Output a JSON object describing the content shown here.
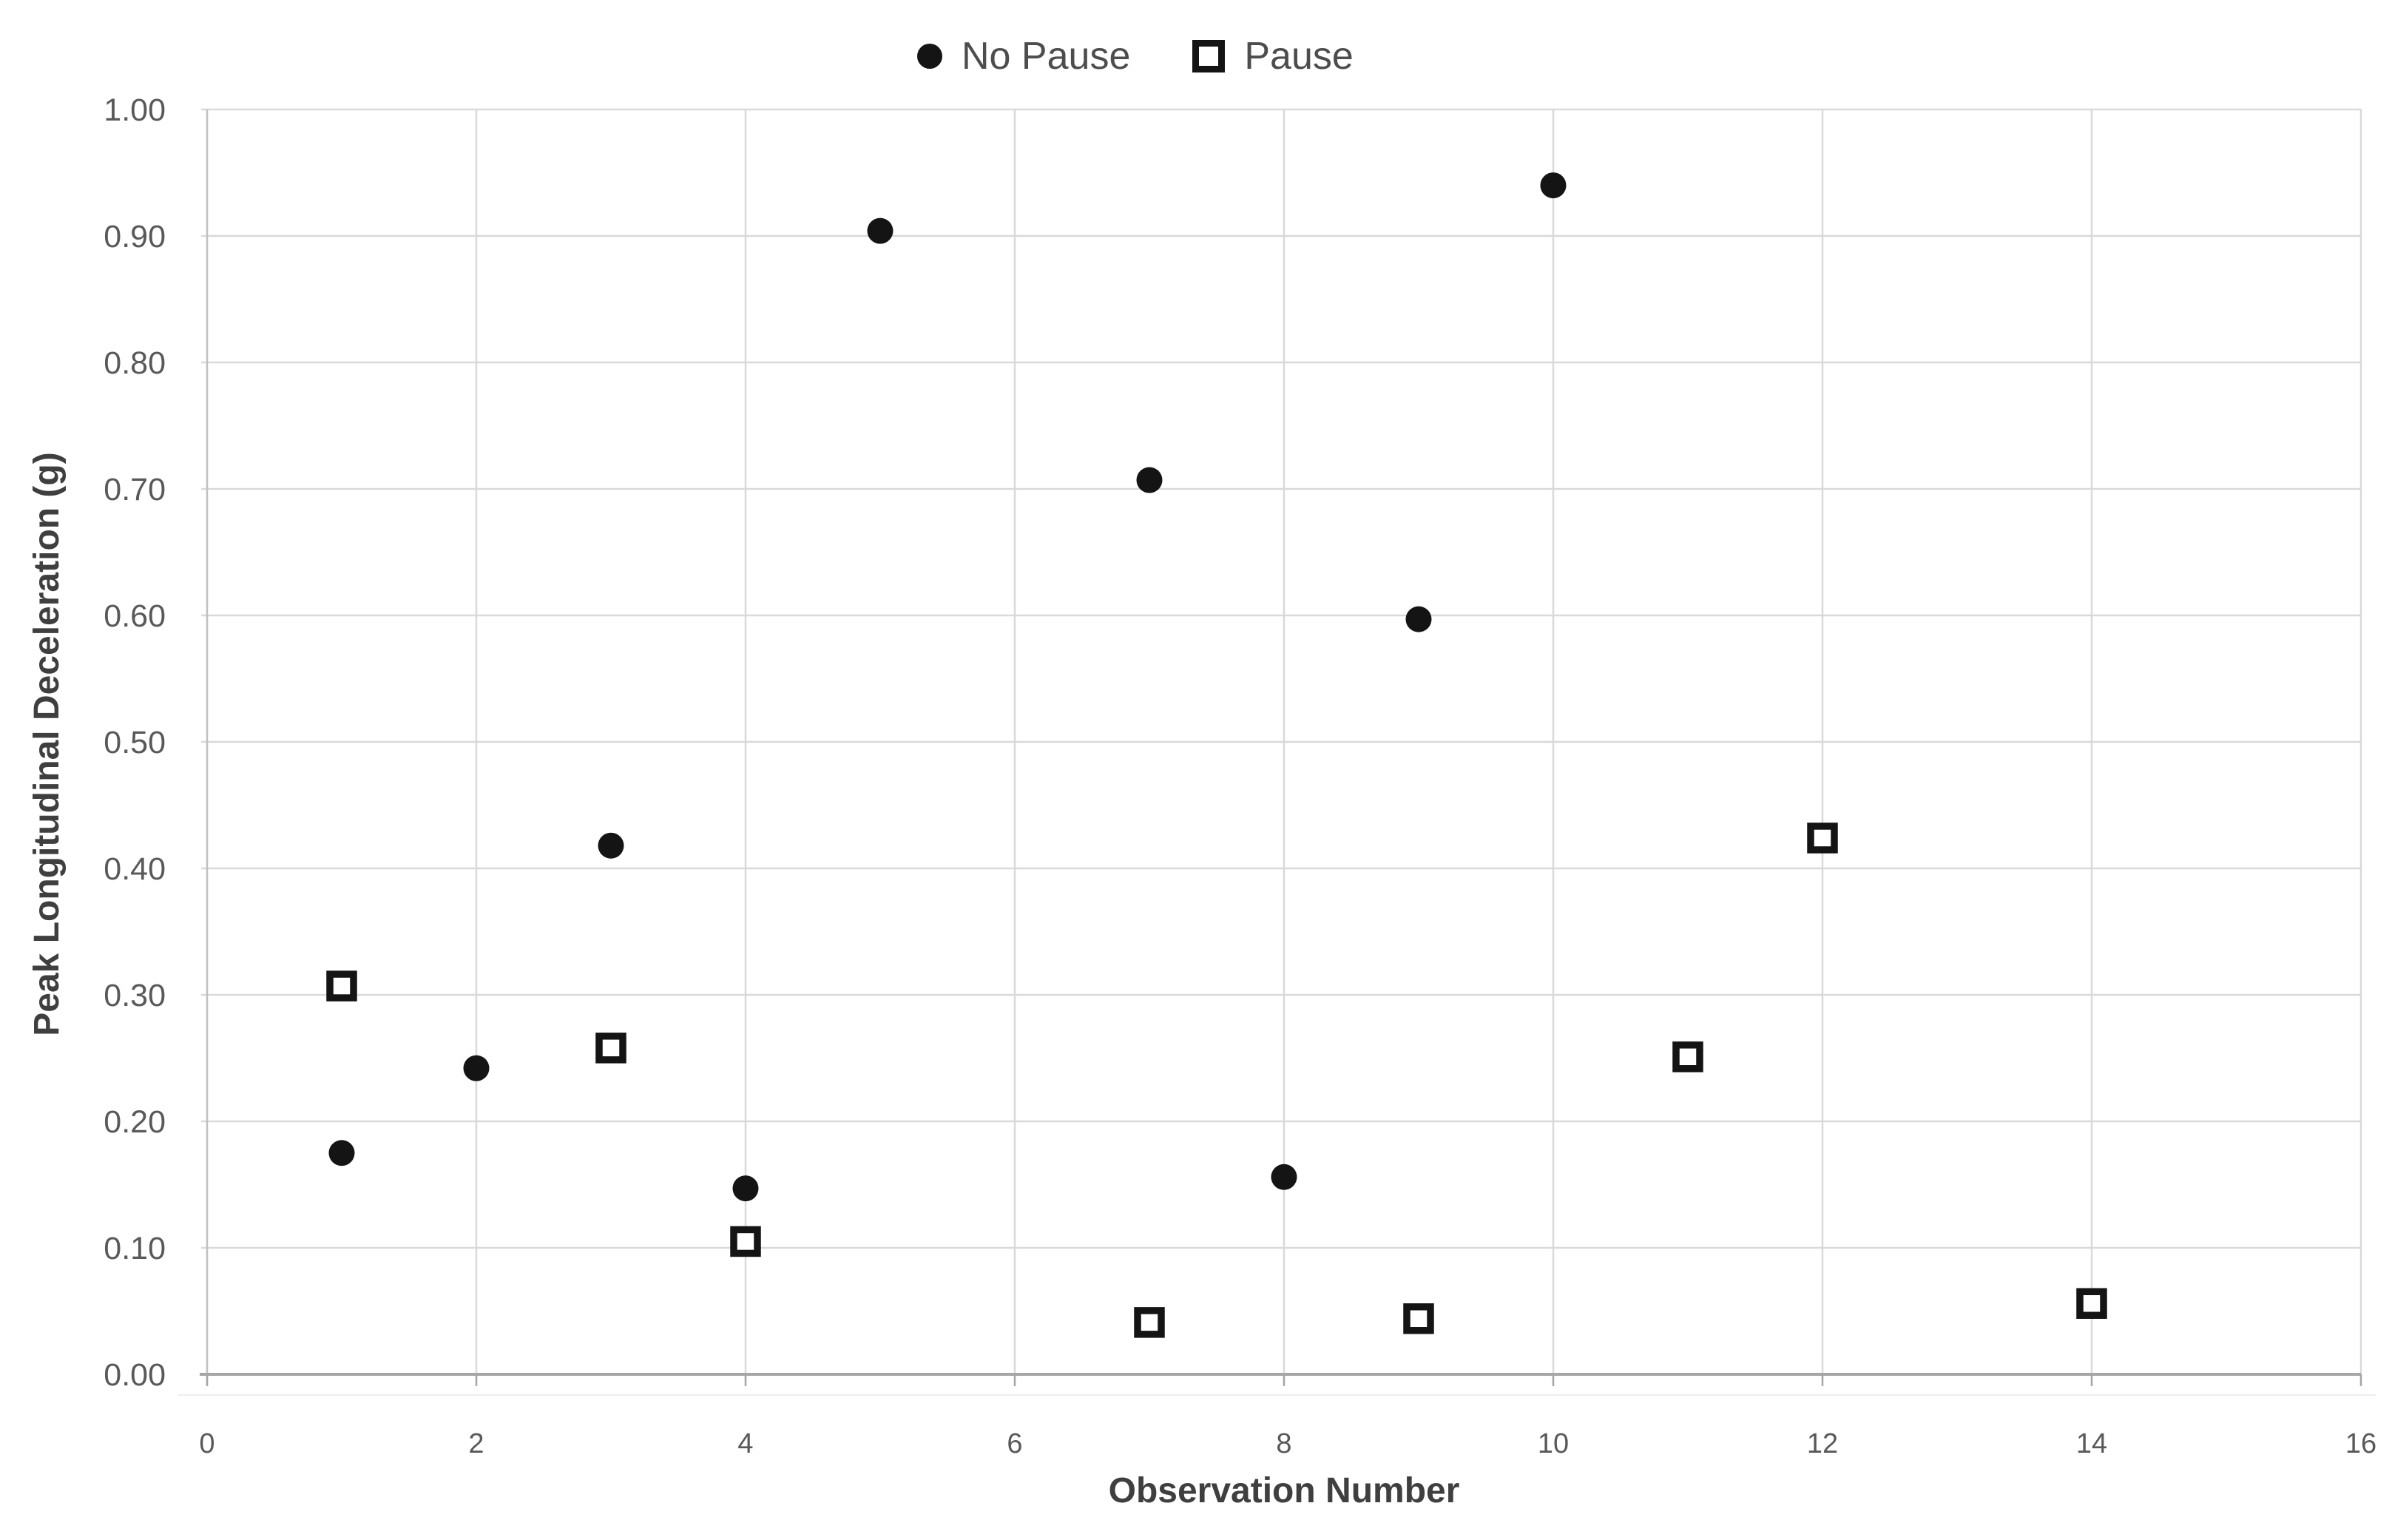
{
  "colors": {
    "background": "#ffffff",
    "marker": "#141414",
    "gridline": "#d9d9d9",
    "axis_line": "#a6a6a6",
    "y_axis_line": "#c0c0c0",
    "tick_label": "#595959",
    "title_text": "#3f3f3f",
    "legend_text": "#4d4d4d"
  },
  "chart_data": {
    "type": "scatter",
    "title": "",
    "xlabel": "Observation Number",
    "ylabel": "Peak Longitudinal Deceleration (g)",
    "xlim": [
      0,
      16
    ],
    "ylim": [
      0.0,
      1.0
    ],
    "grid": true,
    "legend_position": "top-center",
    "x_ticks": {
      "values": [
        0,
        2,
        4,
        6,
        8,
        10,
        12,
        14,
        16
      ],
      "labels": [
        "0",
        "2",
        "4",
        "6",
        "8",
        "10",
        "12",
        "14",
        "16"
      ]
    },
    "y_ticks": {
      "values": [
        0.0,
        0.1,
        0.2,
        0.3,
        0.4,
        0.5,
        0.6,
        0.7,
        0.8,
        0.9,
        1.0
      ],
      "labels": [
        "0.00",
        "0.10",
        "0.20",
        "0.30",
        "0.40",
        "0.50",
        "0.60",
        "0.70",
        "0.80",
        "0.90",
        "1.00"
      ]
    },
    "series": [
      {
        "name": "No Pause",
        "marker": "filled-circle",
        "color": "#141414",
        "points": [
          [
            1,
            0.175
          ],
          [
            2,
            0.242
          ],
          [
            3,
            0.418
          ],
          [
            4,
            0.147
          ],
          [
            5,
            0.904
          ],
          [
            7,
            0.707
          ],
          [
            8,
            0.156
          ],
          [
            9,
            0.597
          ],
          [
            10,
            0.94
          ]
        ]
      },
      {
        "name": "Pause",
        "marker": "open-square",
        "color": "#141414",
        "points": [
          [
            1,
            0.307
          ],
          [
            3,
            0.258
          ],
          [
            4,
            0.105
          ],
          [
            7,
            0.041
          ],
          [
            9,
            0.044
          ],
          [
            11,
            0.251
          ],
          [
            12,
            0.424
          ],
          [
            14,
            0.056
          ]
        ]
      }
    ]
  }
}
